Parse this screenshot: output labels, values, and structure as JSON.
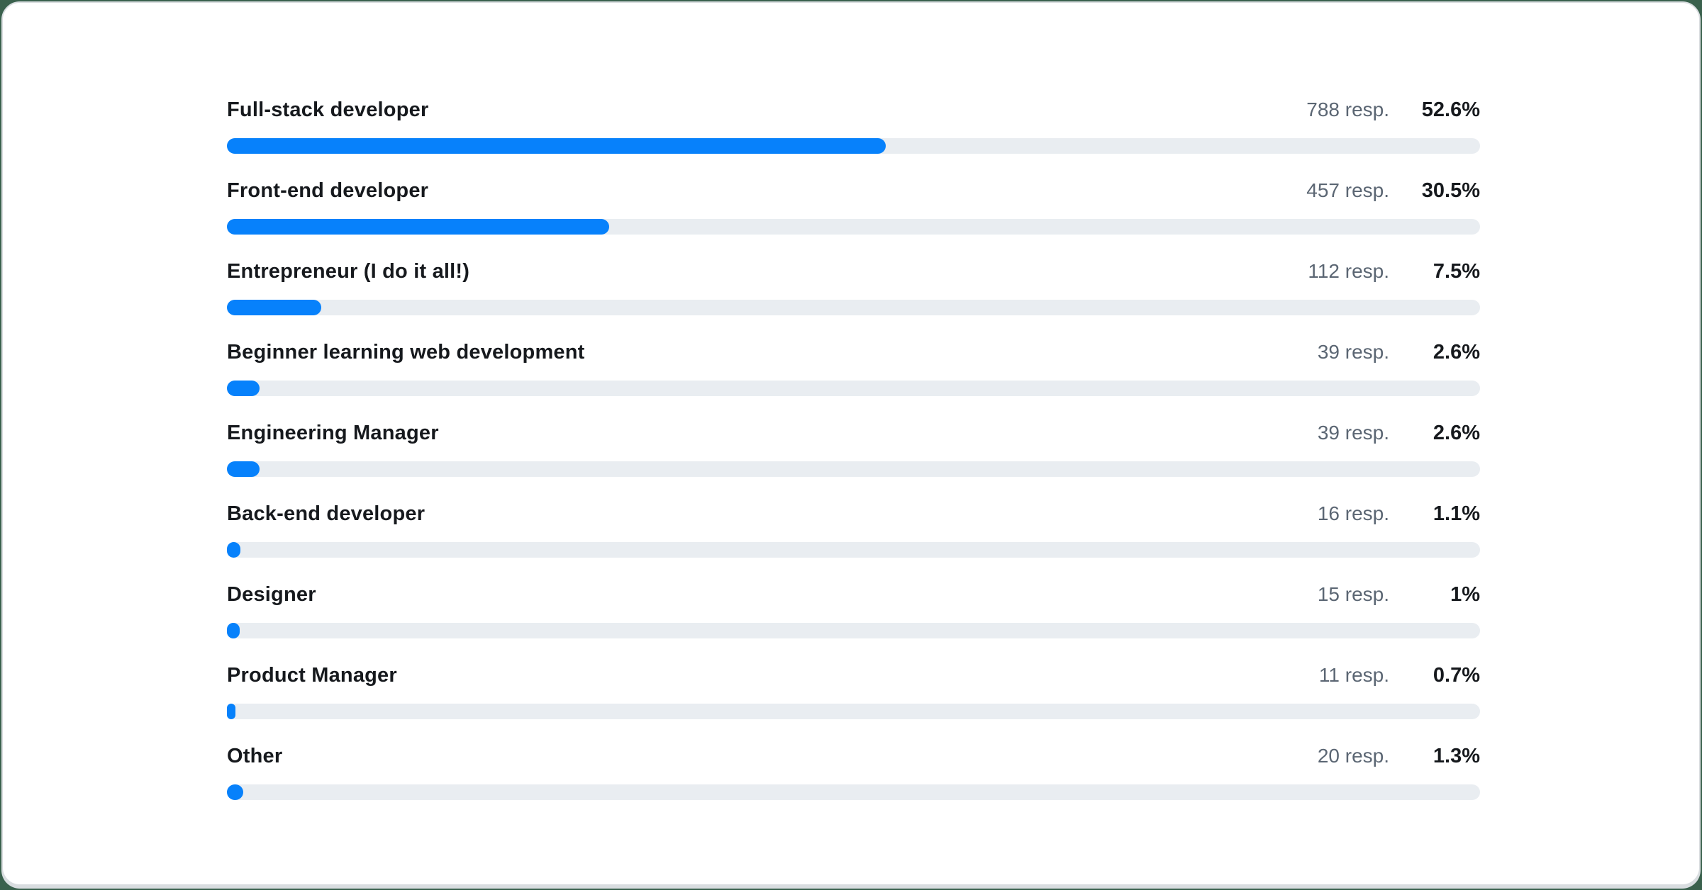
{
  "colors": {
    "page_background": "#3a614d",
    "card_background": "#ffffff",
    "card_border": "#d9dde0",
    "bar_fill": "#0781fb",
    "bar_track": "#e9edf1",
    "label_text": "#16191d",
    "count_text": "#5b6673",
    "percent_text": "#16191d"
  },
  "chart_data": {
    "type": "bar",
    "orientation": "horizontal",
    "title": "",
    "xlabel": "",
    "ylabel": "",
    "xlim": [
      0,
      100
    ],
    "grid": false,
    "legend": false,
    "value_unit": "percent of respondents",
    "categories": [
      "Full-stack developer",
      "Front-end developer",
      "Entrepreneur (I do it all!)",
      "Beginner learning web development",
      "Engineering Manager",
      "Back-end developer",
      "Designer",
      "Product Manager",
      "Other"
    ],
    "values": [
      52.6,
      30.5,
      7.5,
      2.6,
      2.6,
      1.1,
      1.0,
      0.7,
      1.3
    ],
    "counts": [
      788,
      457,
      112,
      39,
      39,
      16,
      15,
      11,
      20
    ],
    "count_labels": [
      "788 resp.",
      "457 resp.",
      "112 resp.",
      "39 resp.",
      "39 resp.",
      "16 resp.",
      "15 resp.",
      "11 resp.",
      "20 resp."
    ],
    "percent_labels": [
      "52.6%",
      "30.5%",
      "7.5%",
      "2.6%",
      "2.6%",
      "1.1%",
      "1%",
      "0.7%",
      "1.3%"
    ]
  }
}
